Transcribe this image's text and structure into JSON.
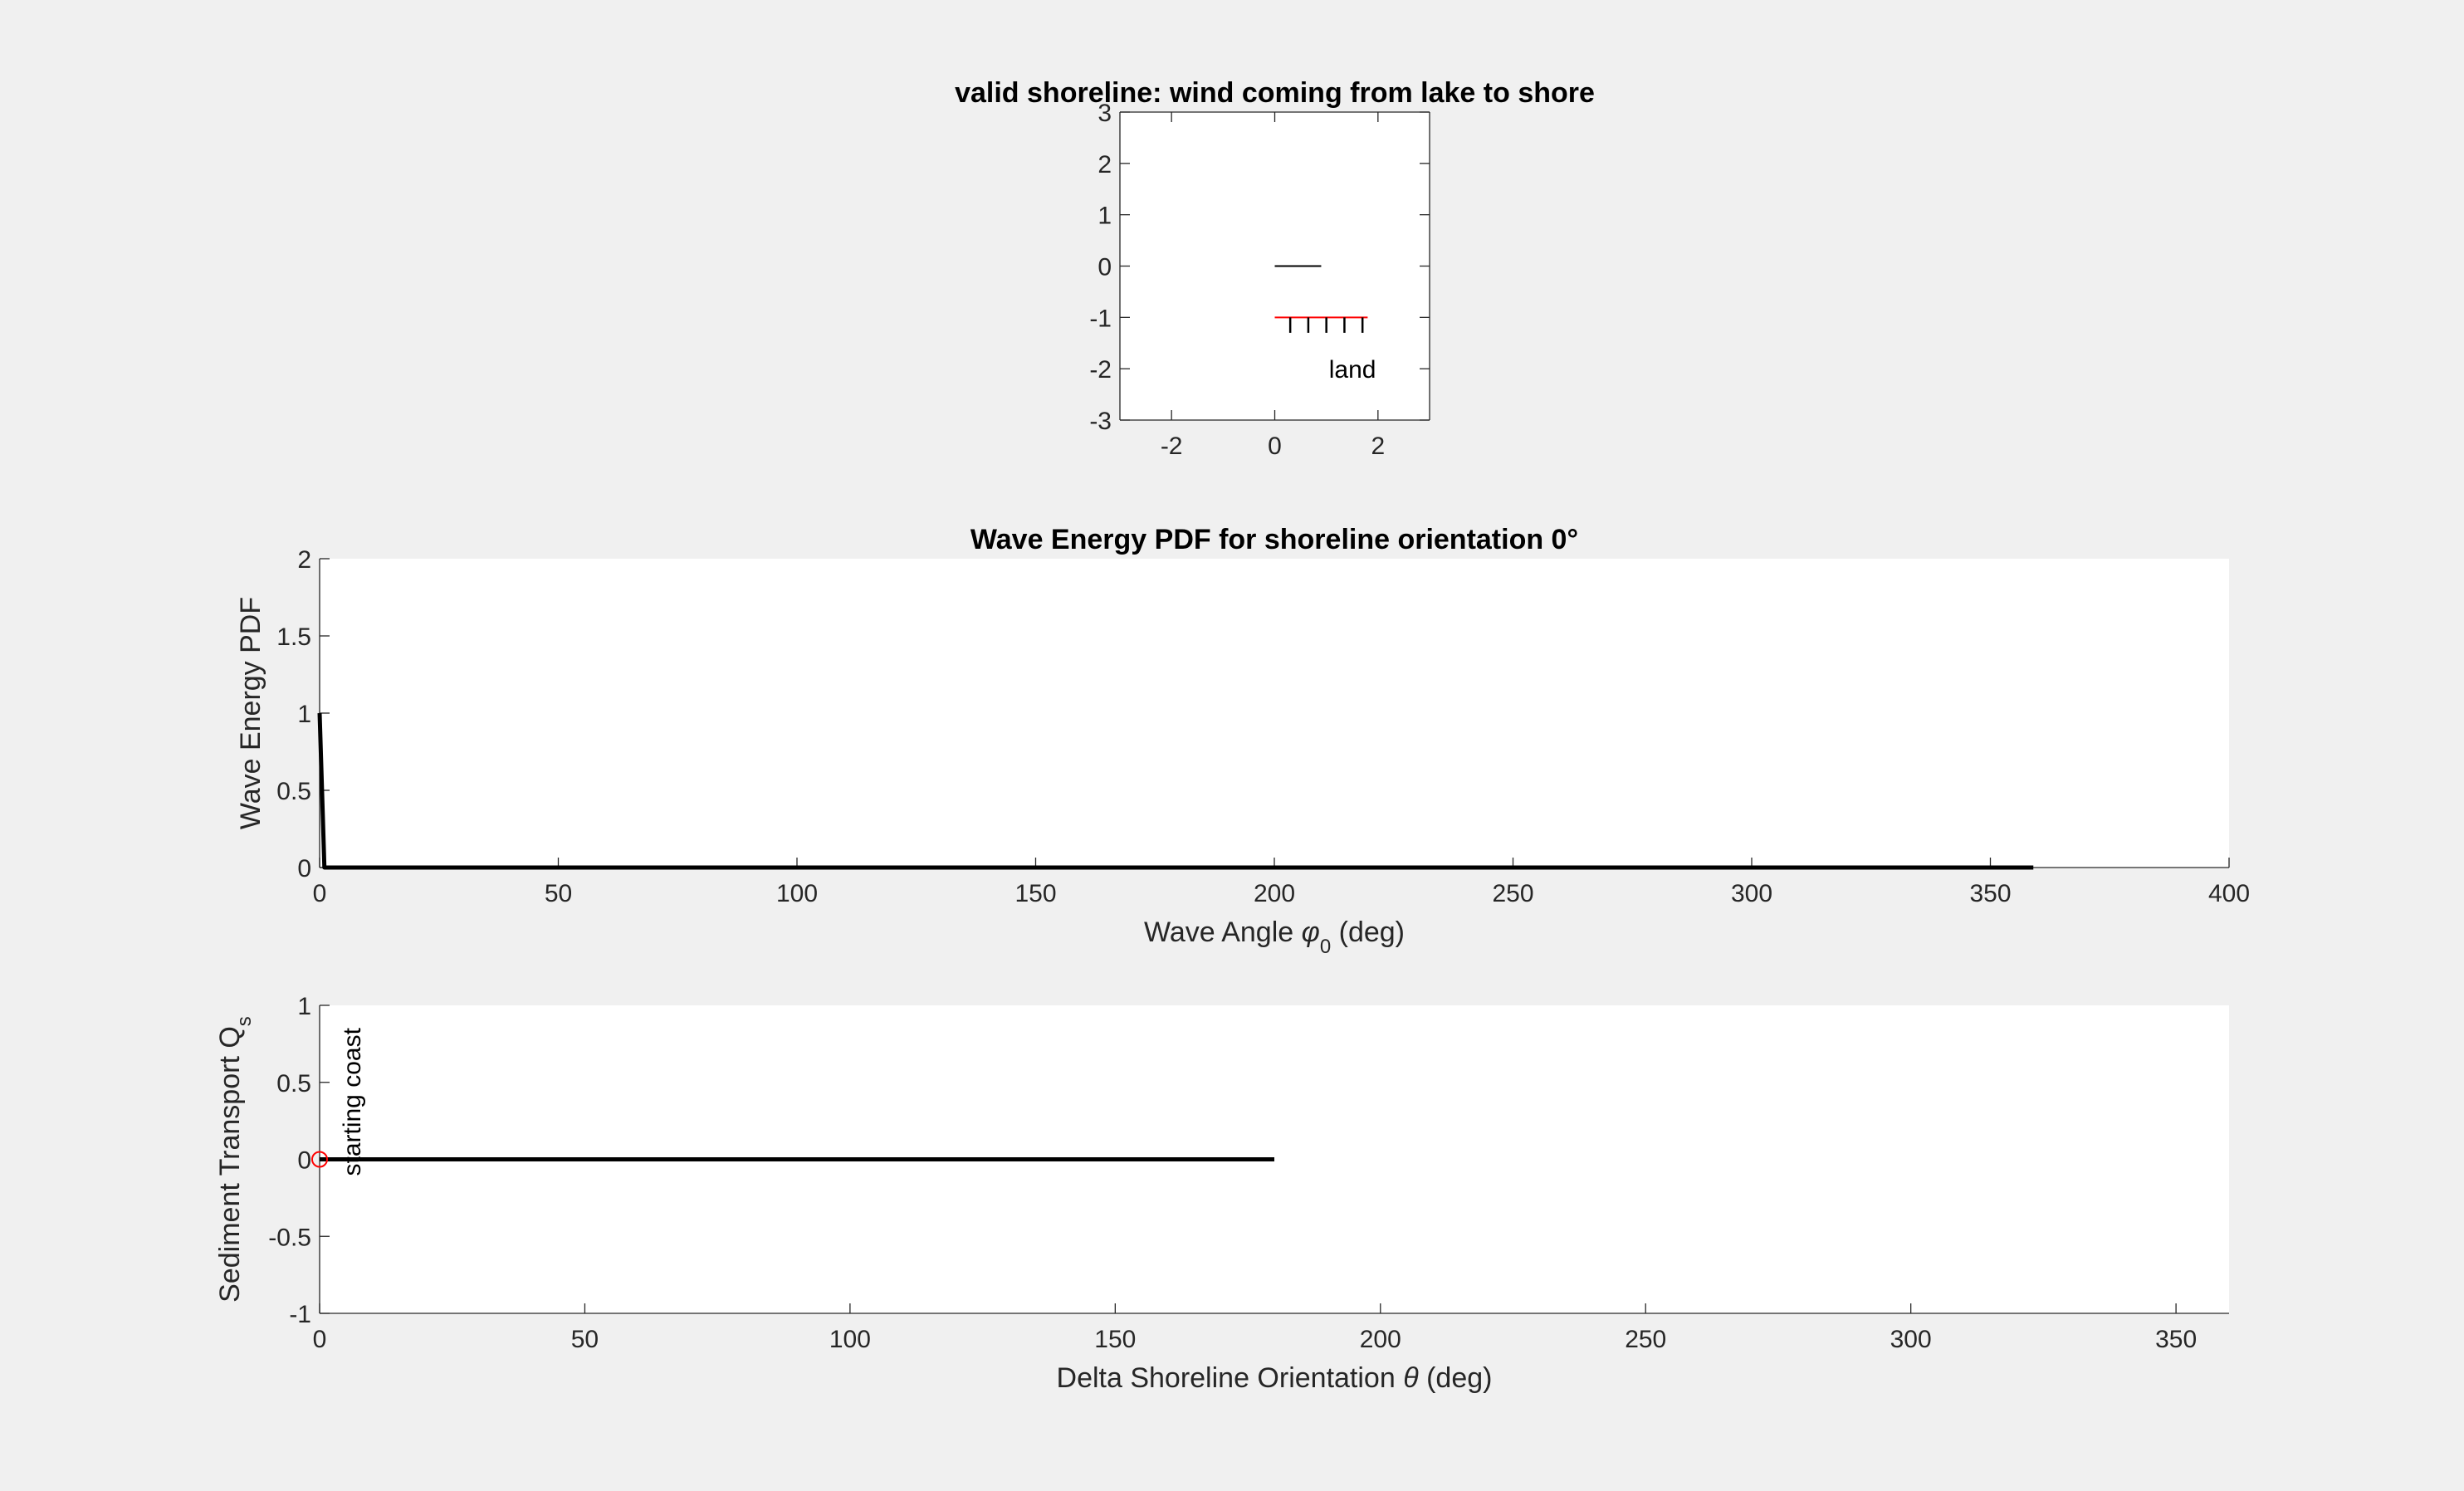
{
  "figure_background": "#f0f0f0",
  "chart_data": [
    {
      "id": "top",
      "type": "line",
      "title": "valid shoreline: wind coming from lake to shore",
      "xlabel": "",
      "ylabel": "",
      "xlim": [
        -3,
        3
      ],
      "ylim": [
        -3,
        3
      ],
      "xticks": [
        -2,
        0,
        2
      ],
      "yticks": [
        -3,
        -2,
        -1,
        0,
        1,
        2,
        3
      ],
      "xtick_labels": [
        "-2",
        "0",
        "2"
      ],
      "ytick_labels": [
        "-3",
        "-2",
        "-1",
        "0",
        "1",
        "2",
        "3"
      ],
      "grid": false,
      "series": [
        {
          "x": [
            0,
            0.9
          ],
          "y": [
            0,
            0
          ],
          "color": "#000000"
        },
        {
          "x": [
            0,
            1.8
          ],
          "y": [
            -1,
            -1
          ],
          "color": "#ff0000"
        }
      ],
      "hatch": {
        "x": [
          0.3,
          0.65,
          1.0,
          1.35,
          1.7
        ],
        "y_top": -1,
        "y_bottom": -1.3,
        "color": "#000000"
      },
      "annotations": [
        {
          "text": "land",
          "x": 1.05,
          "y": -2,
          "rotation": 0
        }
      ]
    },
    {
      "id": "middle",
      "type": "line",
      "title": "Wave Energy PDF for shoreline orientation 0°",
      "xlabel": "Wave Angle",
      "xlabel_symbol": "φ",
      "xlabel_subscript": "0",
      "xlabel_unit": "(deg)",
      "ylabel": "Wave Energy PDF",
      "xlim": [
        0,
        400
      ],
      "ylim": [
        0,
        2
      ],
      "xticks": [
        0,
        50,
        100,
        150,
        200,
        250,
        300,
        350,
        400
      ],
      "yticks": [
        0,
        0.5,
        1,
        1.5,
        2
      ],
      "xtick_labels": [
        "0",
        "50",
        "100",
        "150",
        "200",
        "250",
        "300",
        "350",
        "400"
      ],
      "ytick_labels": [
        "0",
        "0.5",
        "1",
        "1.5",
        "2"
      ],
      "grid": false,
      "series": [
        {
          "x": [
            0,
            1,
            359
          ],
          "y": [
            1,
            0,
            0
          ],
          "color": "#000000"
        }
      ]
    },
    {
      "id": "bottom",
      "type": "line",
      "title": "",
      "xlabel": "Delta Shoreline Orientation",
      "xlabel_symbol": "θ",
      "xlabel_unit": "(deg)",
      "ylabel": "Sediment Transport Q",
      "ylabel_subscript": "s",
      "xlim": [
        0,
        360
      ],
      "ylim": [
        -1,
        1
      ],
      "xticks": [
        0,
        50,
        100,
        150,
        200,
        250,
        300,
        350
      ],
      "yticks": [
        -1,
        -0.5,
        0,
        0.5,
        1
      ],
      "xtick_labels": [
        "0",
        "50",
        "100",
        "150",
        "200",
        "250",
        "300",
        "350"
      ],
      "ytick_labels": [
        "-1",
        "-0.5",
        "0",
        "0.5",
        "1"
      ],
      "grid": false,
      "series": [
        {
          "x": [
            0,
            180
          ],
          "y": [
            0,
            0
          ],
          "color": "#000000"
        }
      ],
      "markers": [
        {
          "x": 0,
          "y": 0,
          "shape": "circle",
          "color": "#ff0000"
        }
      ],
      "annotations": [
        {
          "text": "starting coast",
          "x": 3,
          "y": 0,
          "rotation": -90
        }
      ]
    }
  ]
}
